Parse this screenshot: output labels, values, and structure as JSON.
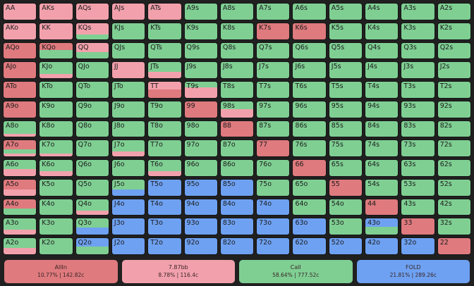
{
  "colors": {
    "allin": "#df7a7e",
    "raise": "#f2a1ac",
    "call": "#7fcf93",
    "fold": "#6ea1f2"
  },
  "grid": [
    [
      "AA",
      "AKs",
      "AQs",
      "AJs",
      "ATs",
      "A9s",
      "A8s",
      "A7s",
      "A6s",
      "A5s",
      "A4s",
      "A3s",
      "A2s"
    ],
    [
      "AKo",
      "KK",
      "KQs",
      "KJs",
      "KTs",
      "K9s",
      "K8s",
      "K7s",
      "K6s",
      "K5s",
      "K4s",
      "K3s",
      "K2s"
    ],
    [
      "AQo",
      "KQo",
      "QQ",
      "QJs",
      "QTs",
      "Q9s",
      "Q8s",
      "Q7s",
      "Q6s",
      "Q5s",
      "Q4s",
      "Q3s",
      "Q2s"
    ],
    [
      "AJo",
      "KJo",
      "QJo",
      "JJ",
      "JTs",
      "J9s",
      "J8s",
      "J7s",
      "J6s",
      "J5s",
      "J4s",
      "J3s",
      "J2s"
    ],
    [
      "ATo",
      "KTo",
      "QTo",
      "JTo",
      "TT",
      "T9s",
      "T8s",
      "T7s",
      "T6s",
      "T5s",
      "T4s",
      "T3s",
      "T2s"
    ],
    [
      "A9o",
      "K9o",
      "Q9o",
      "J9o",
      "T9o",
      "99",
      "98s",
      "97s",
      "96s",
      "95s",
      "94s",
      "93s",
      "92s"
    ],
    [
      "A8o",
      "K8o",
      "Q8o",
      "J8o",
      "T8o",
      "98o",
      "88",
      "87s",
      "86s",
      "85s",
      "84s",
      "83s",
      "82s"
    ],
    [
      "A7o",
      "K7o",
      "Q7o",
      "J7o",
      "T7o",
      "97o",
      "87o",
      "77",
      "76s",
      "75s",
      "74s",
      "73s",
      "72s"
    ],
    [
      "A6o",
      "K6o",
      "Q6o",
      "J6o",
      "T6o",
      "96o",
      "86o",
      "76o",
      "66",
      "65s",
      "64s",
      "63s",
      "62s"
    ],
    [
      "A5o",
      "K5o",
      "Q5o",
      "J5o",
      "T5o",
      "95o",
      "85o",
      "75o",
      "65o",
      "55",
      "54s",
      "53s",
      "52s"
    ],
    [
      "A4o",
      "K4o",
      "Q4o",
      "J4o",
      "T4o",
      "94o",
      "84o",
      "74o",
      "64o",
      "54o",
      "44",
      "43s",
      "42s"
    ],
    [
      "A3o",
      "K3o",
      "Q3o",
      "J3o",
      "T3o",
      "93o",
      "83o",
      "73o",
      "63o",
      "53o",
      "43o",
      "33",
      "32s"
    ],
    [
      "A2o",
      "K2o",
      "Q2o",
      "J2o",
      "T2o",
      "92o",
      "82o",
      "72o",
      "62o",
      "52o",
      "42o",
      "32o",
      "22"
    ]
  ],
  "legend": [
    {
      "label": "AllIn",
      "stats": "10.77% | 142.82c"
    },
    {
      "label": "7.87bb",
      "stats": "8.78% | 116.4c"
    },
    {
      "label": "Call",
      "stats": "58.64% | 777.52c"
    },
    {
      "label": "FOLD",
      "stats": "21.81% | 289.26c"
    }
  ]
}
